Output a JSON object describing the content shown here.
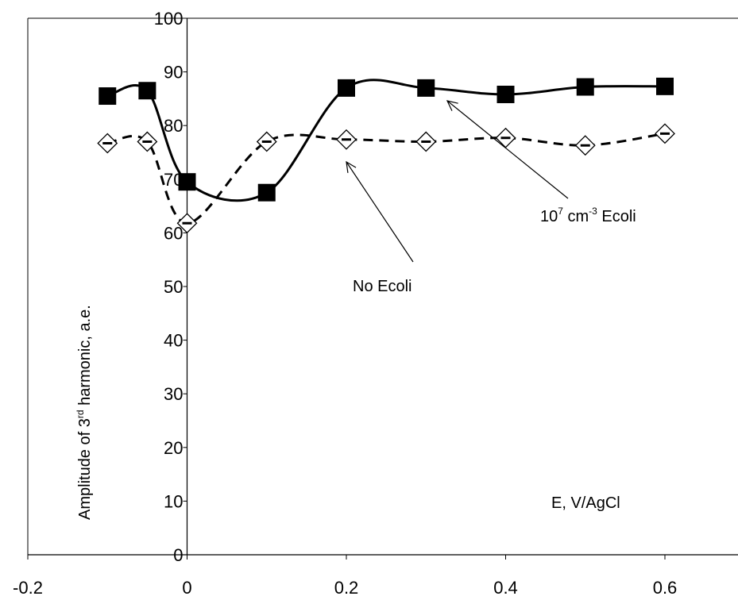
{
  "chart_data": {
    "type": "scatter",
    "title": "",
    "xlabel": "E, V/AgCl",
    "ylabel": {
      "before": "Amplitude of 3",
      "sup": "rd",
      "after": " harmonic, a.e."
    },
    "xlim": [
      -0.2,
      0.7
    ],
    "ylim": [
      0,
      100
    ],
    "xticks": [
      -0.2,
      0,
      0.2,
      0.4,
      0.6
    ],
    "xtick_labels": [
      "-0.2",
      "0",
      "0.2",
      "0.4",
      "0.6"
    ],
    "yticks": [
      0,
      10,
      20,
      30,
      40,
      50,
      60,
      70,
      80,
      90,
      100
    ],
    "ytick_labels": [
      "0",
      "10",
      "20",
      "30",
      "40",
      "50",
      "60",
      "70",
      "80",
      "90",
      "100"
    ],
    "grid": false,
    "legend": "none",
    "series": [
      {
        "marker": "square",
        "line": "solid",
        "color": "#000000",
        "x": [
          -0.1,
          -0.05,
          0,
          0.1,
          0.2,
          0.3,
          0.4,
          0.5,
          0.6
        ],
        "y": [
          85.5,
          86.5,
          69.5,
          67.5,
          87.0,
          87.0,
          85.8,
          87.2,
          87.3
        ]
      },
      {
        "marker": "diamond",
        "line": "dashed",
        "color": "#000000",
        "x": [
          -0.1,
          -0.05,
          0,
          0.1,
          0.2,
          0.3,
          0.4,
          0.5,
          0.6
        ],
        "y": [
          76.7,
          77.0,
          61.8,
          77.0,
          77.4,
          77.0,
          77.7,
          76.3,
          78.5
        ]
      }
    ],
    "annotations": {
      "ecoli": {
        "base": "10",
        "sup1": "7",
        "mid": " cm",
        "sup2": "-3",
        "tail": " Ecoli"
      },
      "no_ecoli": "No Ecoli"
    }
  }
}
